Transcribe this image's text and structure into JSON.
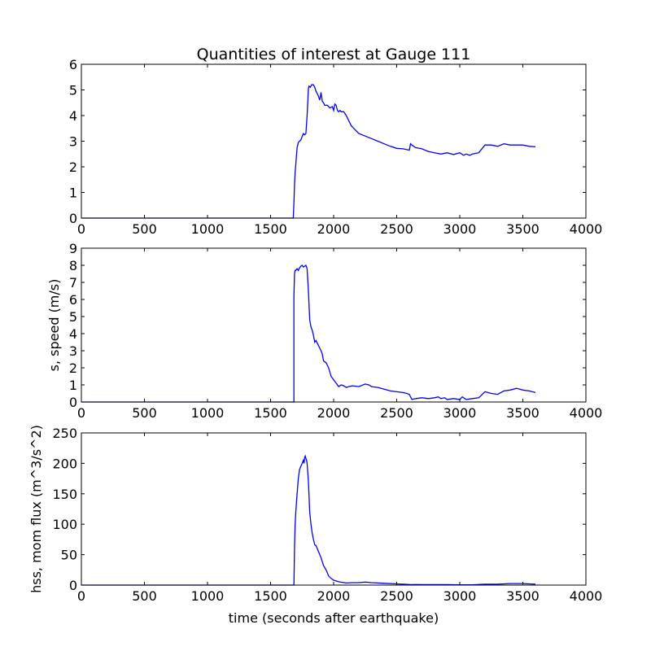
{
  "title": "Quantities of interest at Gauge 111",
  "colors": {
    "line": "#0000ff",
    "axes": "#000000",
    "background": "#ffffff"
  },
  "chart_data": [
    {
      "type": "line",
      "title": "Quantities of interest at Gauge 111",
      "xlabel": "",
      "ylabel": "",
      "xlim": [
        0,
        4000
      ],
      "ylim": [
        0,
        6
      ],
      "xticks": [
        0,
        500,
        1000,
        1500,
        2000,
        2500,
        3000,
        3500,
        4000
      ],
      "yticks": [
        0,
        1,
        2,
        3,
        4,
        5,
        6
      ],
      "grid": false,
      "series": [
        {
          "x": [
            0,
            1680,
            1685,
            1690,
            1695,
            1700,
            1710,
            1720,
            1740,
            1760,
            1770,
            1780,
            1790,
            1800,
            1805,
            1815,
            1825,
            1840,
            1850,
            1860,
            1870,
            1880,
            1890,
            1900,
            1910,
            1920,
            1930,
            1950,
            1970,
            1990,
            2000,
            2010,
            2020,
            2030,
            2040,
            2050,
            2060,
            2080,
            2100,
            2120,
            2140,
            2160,
            2200,
            2250,
            2300,
            2350,
            2400,
            2450,
            2500,
            2550,
            2600,
            2610,
            2620,
            2650,
            2700,
            2750,
            2800,
            2850,
            2900,
            2950,
            3000,
            3030,
            3050,
            3080,
            3100,
            3150,
            3200,
            3250,
            3300,
            3350,
            3400,
            3450,
            3500,
            3550,
            3600
          ],
          "y": [
            0,
            0,
            0.6,
            1.3,
            1.8,
            2.1,
            2.75,
            2.95,
            3.05,
            3.3,
            3.25,
            3.3,
            4.0,
            5.05,
            5.15,
            5.1,
            5.2,
            5.2,
            5.1,
            4.95,
            4.85,
            4.75,
            4.6,
            4.9,
            4.55,
            4.5,
            4.4,
            4.4,
            4.3,
            4.35,
            4.2,
            4.45,
            4.4,
            4.2,
            4.15,
            4.2,
            4.15,
            4.15,
            4.0,
            3.8,
            3.6,
            3.5,
            3.3,
            3.2,
            3.1,
            3.0,
            2.9,
            2.8,
            2.72,
            2.7,
            2.65,
            2.9,
            2.85,
            2.75,
            2.7,
            2.6,
            2.55,
            2.5,
            2.55,
            2.48,
            2.55,
            2.45,
            2.5,
            2.45,
            2.5,
            2.55,
            2.85,
            2.85,
            2.8,
            2.9,
            2.85,
            2.85,
            2.85,
            2.8,
            2.78
          ]
        }
      ]
    },
    {
      "type": "line",
      "xlabel": "",
      "ylabel": "s, speed (m/s)",
      "xlim": [
        0,
        4000
      ],
      "ylim": [
        0,
        9
      ],
      "xticks": [
        0,
        500,
        1000,
        1500,
        2000,
        2500,
        3000,
        3500,
        4000
      ],
      "yticks": [
        0,
        1,
        2,
        3,
        4,
        5,
        6,
        7,
        8,
        9
      ],
      "grid": false,
      "series": [
        {
          "x": [
            0,
            1685,
            1685,
            1690,
            1695,
            1700,
            1710,
            1720,
            1730,
            1740,
            1750,
            1760,
            1770,
            1780,
            1785,
            1790,
            1800,
            1810,
            1820,
            1830,
            1840,
            1850,
            1860,
            1880,
            1900,
            1910,
            1920,
            1940,
            1960,
            1980,
            2000,
            2020,
            2040,
            2060,
            2080,
            2100,
            2120,
            2150,
            2200,
            2250,
            2280,
            2300,
            2350,
            2400,
            2450,
            2500,
            2550,
            2580,
            2600,
            2620,
            2650,
            2700,
            2750,
            2800,
            2830,
            2850,
            2880,
            2900,
            2950,
            3000,
            3020,
            3050,
            3100,
            3150,
            3200,
            3250,
            3300,
            3350,
            3400,
            3450,
            3500,
            3550,
            3600
          ],
          "y": [
            0,
            0,
            6.2,
            7.5,
            7.7,
            7.7,
            7.8,
            7.7,
            7.85,
            7.95,
            8.0,
            7.9,
            7.95,
            8.0,
            7.9,
            7.8,
            6.5,
            4.8,
            4.4,
            4.2,
            3.9,
            3.5,
            3.6,
            3.3,
            3.0,
            2.8,
            2.4,
            2.3,
            2.0,
            1.5,
            1.3,
            1.1,
            0.9,
            1.0,
            0.95,
            0.85,
            0.9,
            0.95,
            0.9,
            1.05,
            1.0,
            0.9,
            0.85,
            0.75,
            0.65,
            0.6,
            0.55,
            0.5,
            0.45,
            0.15,
            0.2,
            0.25,
            0.2,
            0.25,
            0.3,
            0.2,
            0.25,
            0.15,
            0.2,
            0.15,
            0.3,
            0.15,
            0.2,
            0.25,
            0.6,
            0.5,
            0.45,
            0.65,
            0.7,
            0.8,
            0.7,
            0.65,
            0.55
          ]
        }
      ]
    },
    {
      "type": "line",
      "xlabel": "time (seconds after earthquake)",
      "ylabel": "hss, mom flux (m^3/s^2)",
      "xlim": [
        0,
        4000
      ],
      "ylim": [
        0,
        250
      ],
      "xticks": [
        0,
        500,
        1000,
        1500,
        2000,
        2500,
        3000,
        3500,
        4000
      ],
      "yticks": [
        0,
        50,
        100,
        150,
        200,
        250
      ],
      "grid": false,
      "series": [
        {
          "x": [
            0,
            1685,
            1690,
            1695,
            1700,
            1710,
            1720,
            1730,
            1740,
            1750,
            1760,
            1765,
            1770,
            1775,
            1780,
            1785,
            1790,
            1800,
            1810,
            1820,
            1830,
            1840,
            1850,
            1860,
            1870,
            1880,
            1900,
            1920,
            1940,
            1960,
            1980,
            2000,
            2050,
            2100,
            2150,
            2200,
            2250,
            2300,
            2400,
            2500,
            2600,
            2700,
            2800,
            2900,
            3000,
            3100,
            3200,
            3300,
            3400,
            3500,
            3600
          ],
          "y": [
            0,
            0,
            60,
            100,
            120,
            150,
            175,
            190,
            195,
            200,
            205,
            200,
            210,
            212,
            208,
            205,
            200,
            170,
            120,
            100,
            85,
            75,
            66,
            65,
            60,
            55,
            45,
            32,
            25,
            15,
            11,
            8,
            5,
            3.5,
            4,
            4,
            5,
            4,
            3,
            2,
            1,
            0.8,
            0.8,
            0.8,
            0.6,
            0.5,
            1.5,
            1.5,
            2.5,
            2.5,
            1.5
          ]
        }
      ]
    }
  ]
}
